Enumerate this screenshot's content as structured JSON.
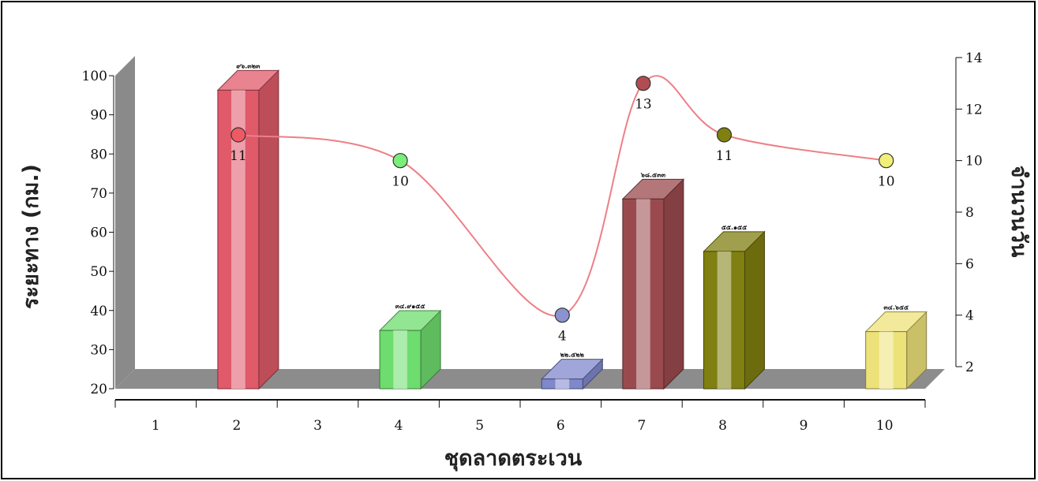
{
  "chart_data": {
    "type": "bar",
    "title": "",
    "xlabel": "ชุดลาดตระเวน",
    "ylabel": "ระยะทาง (กม.)",
    "y2label": "จำนวนวัน",
    "categories": [
      "1",
      "2",
      "3",
      "4",
      "5",
      "6",
      "7",
      "8",
      "9",
      "10"
    ],
    "ylim": [
      20,
      100
    ],
    "y2lim": [
      2,
      14
    ],
    "yticks": [
      "20",
      "30",
      "40",
      "50",
      "60",
      "70",
      "80",
      "90",
      "100"
    ],
    "y2ticks": [
      "2",
      "4",
      "6",
      "8",
      "10",
      "12",
      "14"
    ],
    "grid": false,
    "legend": "none",
    "series": [
      {
        "type": "bar",
        "axis": "left",
        "values": [
          null,
          96.3,
          null,
          34.9,
          null,
          22.5,
          68.5,
          55.1,
          null,
          34.6
        ],
        "value_labels": [
          "",
          "๙๖.๓๒๓",
          "",
          "๓๔.๙๑๕๕",
          "",
          "๒๒.๕๒๒",
          "๖๘.๕๓๓",
          "๕๕.๑๕๕",
          "",
          "๓๔.๖๕๕"
        ],
        "colors": [
          "",
          "#e05a6a",
          "",
          "#6edc6e",
          "",
          "#8088cc",
          "#9a4a4e",
          "#7f7f12",
          "",
          "#ede27a"
        ]
      },
      {
        "type": "line",
        "axis": "right",
        "values": [
          null,
          11,
          null,
          10,
          null,
          4,
          13,
          11,
          null,
          10
        ],
        "labels": [
          "",
          "11",
          "",
          "10",
          "",
          "4",
          "13",
          "11",
          "",
          "10"
        ],
        "line_color": "#ee7f86",
        "marker_colors": [
          "",
          "#ee5a64",
          "",
          "#7aee7a",
          "",
          "#8a92d0",
          "#b24c50",
          "#808010",
          "",
          "#f2ef78"
        ]
      }
    ]
  }
}
